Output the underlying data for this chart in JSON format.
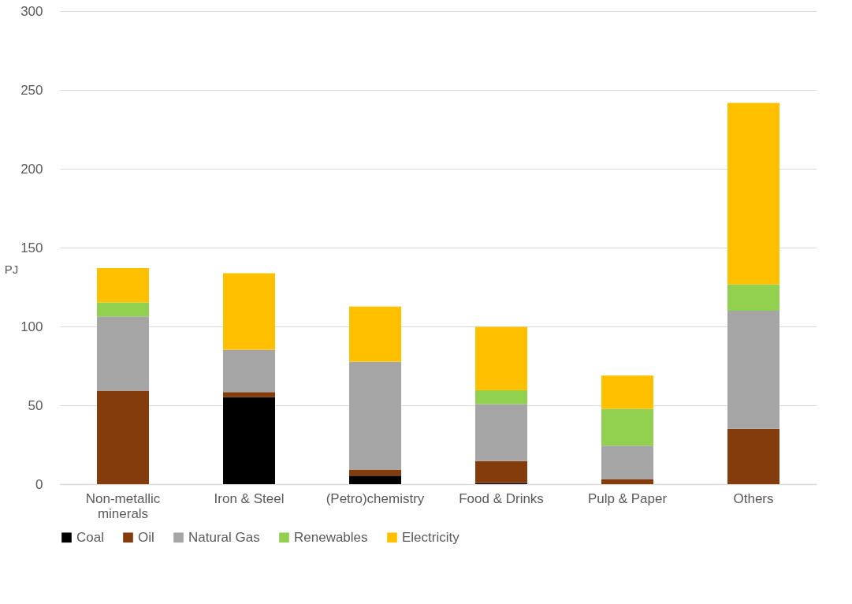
{
  "chart_data": {
    "type": "bar",
    "stacked": true,
    "ylabel": "PJ",
    "categories": [
      "Non-metallic minerals",
      "Iron & Steel",
      "(Petro)chemistry",
      "Food & Drinks",
      "Pulp & Paper",
      "Others"
    ],
    "series": [
      {
        "name": "Coal",
        "color": "#000000",
        "values": [
          0,
          55.2,
          5.4,
          0.8,
          0,
          0
        ]
      },
      {
        "name": "Oil",
        "color": "#843c0c",
        "values": [
          59.3,
          3.2,
          3.8,
          13.8,
          3.2,
          35.1
        ]
      },
      {
        "name": "Natural Gas",
        "color": "#a5a5a5",
        "values": [
          47.1,
          26.9,
          68.4,
          36.1,
          21.2,
          74.9
        ]
      },
      {
        "name": "Renewables",
        "color": "#92d050",
        "values": [
          8.9,
          0,
          0,
          8.8,
          23.4,
          16.6
        ]
      },
      {
        "name": "Electricity",
        "color": "#ffc000",
        "values": [
          21.7,
          48.5,
          35.0,
          40.3,
          21.1,
          115.2
        ]
      }
    ],
    "ylim": [
      0,
      300
    ],
    "yticks": [
      0,
      50,
      100,
      150,
      200,
      250,
      300
    ],
    "grid": "y",
    "legend": "bottom"
  }
}
